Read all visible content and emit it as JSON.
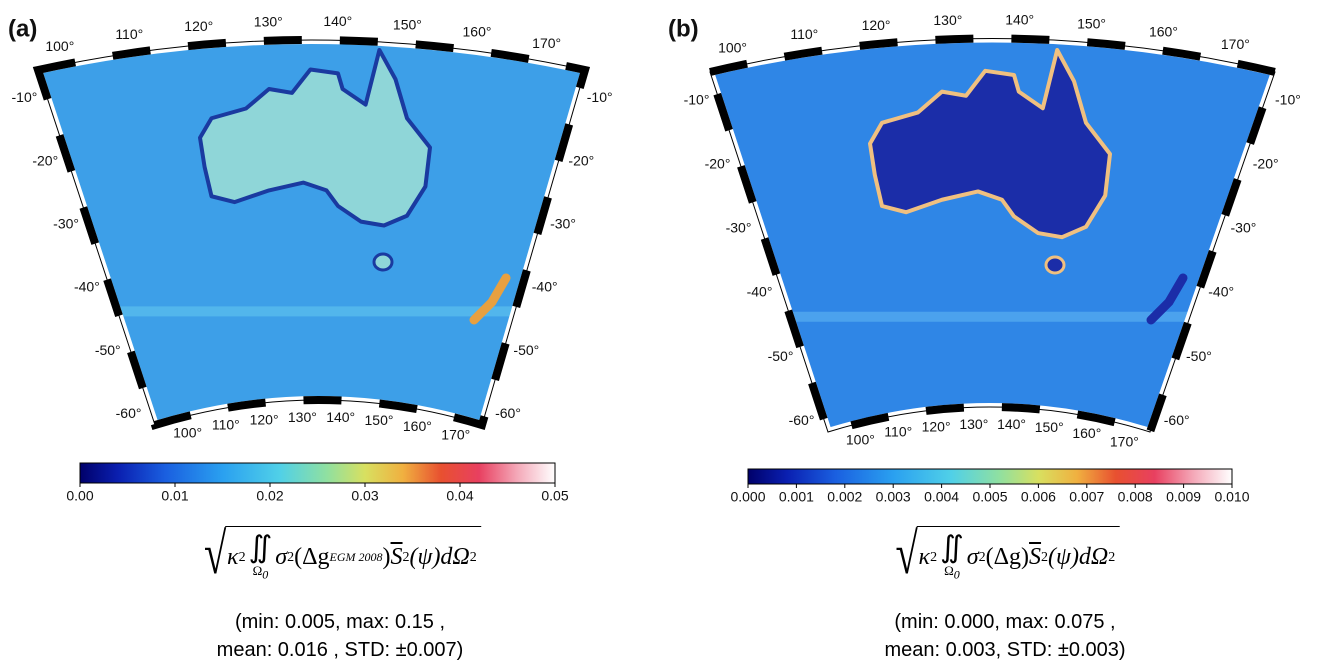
{
  "panels": [
    {
      "label": "(a)",
      "lon_labels": [
        "100°",
        "110°",
        "120°",
        "130°",
        "140°",
        "150°",
        "160°",
        "170°"
      ],
      "lat_labels": [
        "-10°",
        "-20°",
        "-30°",
        "-40°",
        "-50°",
        "-60°"
      ],
      "colorbar": {
        "lim": [
          0,
          0.05
        ],
        "ticks": [
          {
            "value": 0,
            "label": "0.00"
          },
          0.01,
          0.02,
          0.03,
          0.04,
          0.05
        ]
      },
      "formula": {
        "coef": "κ",
        "coef_exp": "2",
        "integral": "∬",
        "domain": "Ω",
        "domain_sub": "0",
        "term": "σ",
        "term_exp": "2",
        "arg": "(Δg",
        "arg_sub": "EGM 2008",
        "arg_close": ")",
        "kernel": "S",
        "kernel_exp": "2",
        "tail": "(ψ)dΩ",
        "tail_exp": "2"
      },
      "stats": [
        "(min: 0.005, max: 0.15 ,",
        "mean: 0.016 , STD: ±0.007)"
      ]
    },
    {
      "label": "(b)",
      "lon_labels": [
        "100°",
        "110°",
        "120°",
        "130°",
        "140°",
        "150°",
        "160°",
        "170°"
      ],
      "lat_labels": [
        "-10°",
        "-20°",
        "-30°",
        "-40°",
        "-50°",
        "-60°"
      ],
      "colorbar": {
        "lim": [
          0,
          0.01
        ],
        "ticks": [
          {
            "value": 0,
            "label": "0.000"
          },
          0.001,
          0.002,
          0.003,
          0.004,
          0.005,
          0.006,
          0.007,
          0.008,
          0.009,
          {
            "value": 0.01,
            "label": "0.010"
          }
        ]
      },
      "formula": {
        "coef": "κ",
        "coef_exp": "2",
        "integral": "∬",
        "domain": "Ω",
        "domain_sub": "0",
        "term": "σ",
        "term_exp": "2",
        "arg": "(Δg",
        "arg_close": ")",
        "kernel": "S",
        "kernel_exp": "2",
        "tail": "(ψ)dΩ",
        "tail_exp": "2"
      },
      "stats": [
        "(min: 0.000, max: 0.075 ,",
        "mean: 0.003, STD: ±0.003)"
      ]
    }
  ]
}
